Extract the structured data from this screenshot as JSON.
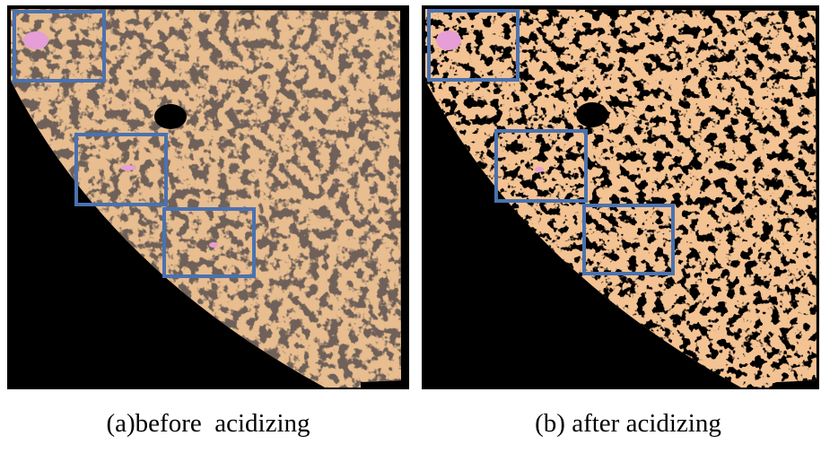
{
  "panels": [
    {
      "caption": "(a)before  acidizing"
    },
    {
      "caption": "(b) after acidizing"
    }
  ]
}
